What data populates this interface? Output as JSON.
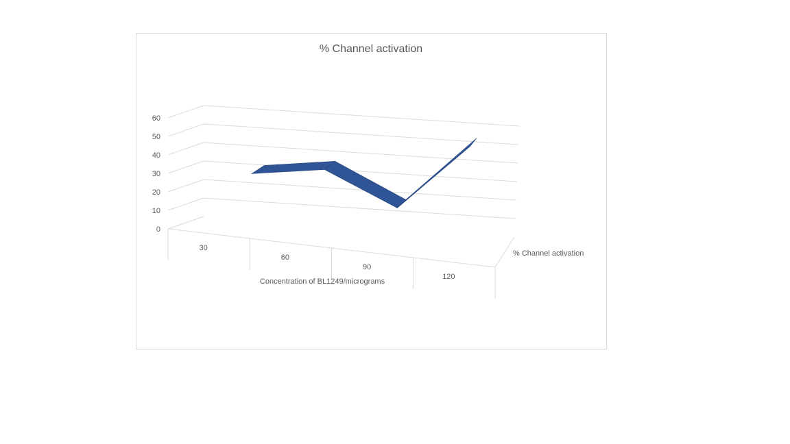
{
  "chart_data": {
    "type": "line",
    "style": "3d-line",
    "title": "% Channel activation",
    "xlabel": "Concentration of BL1249/micrograms",
    "ylabel": "",
    "categories": [
      "30",
      "60",
      "90",
      "120"
    ],
    "series": [
      {
        "name": "% Channel activation",
        "values": [
          25,
          30,
          12,
          48
        ],
        "color": "#2f5597"
      }
    ],
    "ylim": [
      0,
      60
    ],
    "yticks": [
      "0",
      "10",
      "20",
      "30",
      "40",
      "50",
      "60"
    ],
    "grid": true,
    "legend": "none"
  }
}
